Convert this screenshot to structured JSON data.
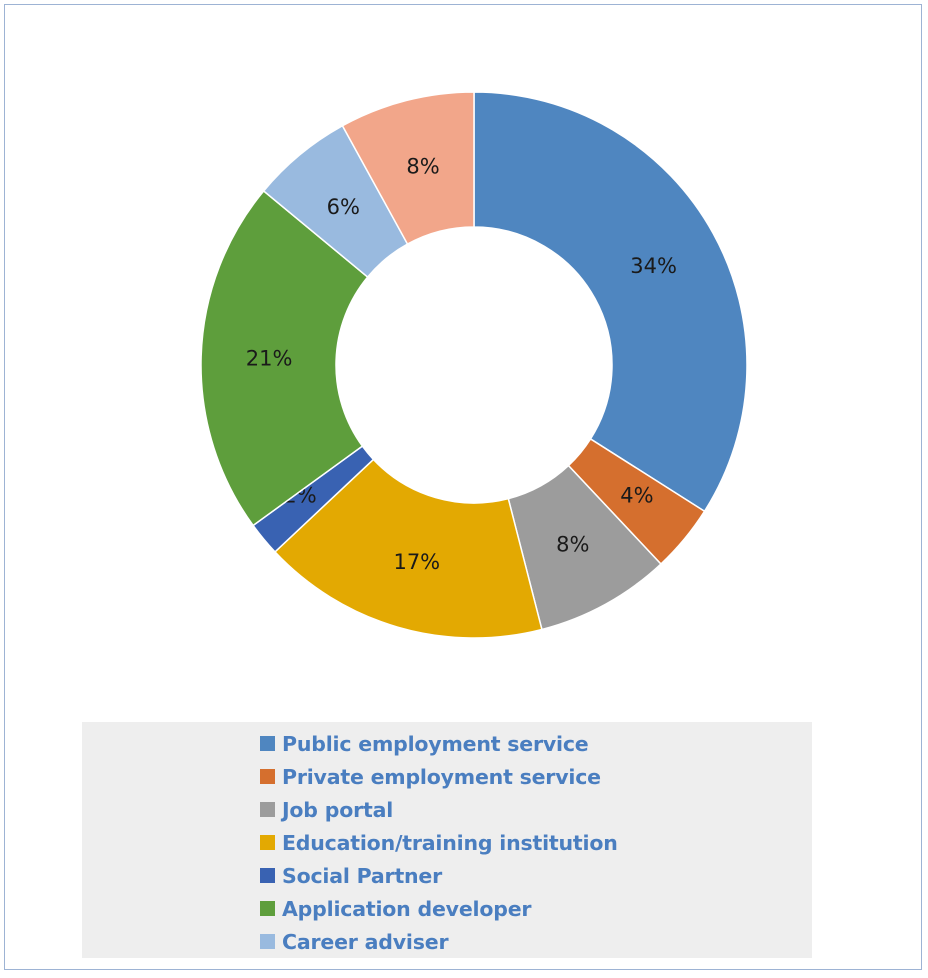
{
  "chart_data": {
    "type": "pie",
    "variant": "donut",
    "categories": [
      "Public employment service",
      "Private employment service",
      "Job portal",
      "Education/training institution",
      "Social Partner",
      "Application developer",
      "Career adviser",
      ""
    ],
    "values": [
      34,
      4,
      8,
      17,
      2,
      21,
      6,
      8
    ],
    "data_labels": [
      "34%",
      "4%",
      "8%",
      "17%",
      "2%",
      "21%",
      "6%",
      "8%"
    ],
    "colors": [
      "#4f86c0",
      "#d56f2e",
      "#9c9c9c",
      "#e3a902",
      "#3962b2",
      "#5e9e3c",
      "#99badf",
      "#f2a68a"
    ],
    "legend_position": "bottom",
    "legend_entries": [
      "Public employment service",
      "Private employment service",
      "Job portal",
      "Education/training institution",
      "Social Partner",
      "Application developer",
      "Career adviser"
    ],
    "title": ""
  }
}
